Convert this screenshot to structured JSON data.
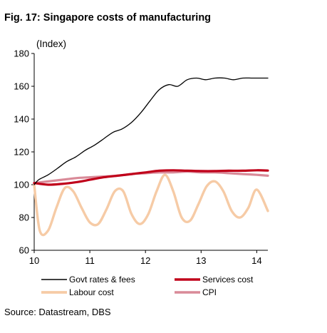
{
  "figure": {
    "title": "Fig. 17:  Singapore costs of manufacturing",
    "source": "Source: Datastream, DBS"
  },
  "chart_data": {
    "type": "line",
    "ylabel": "(Index)",
    "ylim": [
      60,
      180
    ],
    "yticks": [
      60,
      80,
      100,
      120,
      140,
      160,
      180
    ],
    "xlim": [
      10,
      14.2
    ],
    "xticks": [
      10,
      11,
      12,
      13,
      14
    ],
    "grid": false,
    "legend_position": "bottom",
    "series": [
      {
        "name": "Govt rates & fees",
        "color": "#000000",
        "width": 1.3,
        "x": [
          10.0,
          10.08,
          10.25,
          10.42,
          10.58,
          10.75,
          10.92,
          11.08,
          11.25,
          11.42,
          11.58,
          11.75,
          11.92,
          12.08,
          12.25,
          12.42,
          12.58,
          12.75,
          12.92,
          13.08,
          13.25,
          13.42,
          13.58,
          13.75,
          13.92,
          14.08,
          14.2
        ],
        "y": [
          100,
          103,
          106,
          110,
          114,
          117,
          121,
          124,
          128,
          132,
          134,
          138,
          144,
          151,
          158,
          161,
          160,
          164,
          165,
          164,
          165,
          165,
          164,
          165,
          165,
          165,
          165
        ]
      },
      {
        "name": "Services cost",
        "color": "#c0001a",
        "width": 3.2,
        "x": [
          10.0,
          10.25,
          10.5,
          10.75,
          11.0,
          11.25,
          11.5,
          11.75,
          12.0,
          12.25,
          12.5,
          12.75,
          13.0,
          13.25,
          13.5,
          13.75,
          14.0,
          14.2
        ],
        "y": [
          101,
          100,
          100.5,
          101.5,
          103,
          104.5,
          105.5,
          106.5,
          107.5,
          108.5,
          108.8,
          108.5,
          108.3,
          108.3,
          108.5,
          108.5,
          108.8,
          108.6
        ]
      },
      {
        "name": "Labour cost",
        "color": "#f6cba6",
        "width": 3.4,
        "x": [
          10.0,
          10.1,
          10.25,
          10.4,
          10.55,
          10.7,
          10.85,
          11.0,
          11.15,
          11.3,
          11.45,
          11.6,
          11.75,
          11.9,
          12.05,
          12.2,
          12.35,
          12.5,
          12.65,
          12.8,
          12.95,
          13.1,
          13.25,
          13.4,
          13.55,
          13.7,
          13.85,
          14.0,
          14.2
        ],
        "y": [
          100,
          72,
          72,
          86,
          98,
          96,
          86,
          77,
          76,
          85,
          96,
          96,
          82,
          76,
          82,
          96,
          106,
          96,
          80,
          78,
          88,
          99,
          102,
          96,
          84,
          80,
          86,
          97,
          84
        ]
      },
      {
        "name": "CPI",
        "color": "#d98a98",
        "width": 3.2,
        "x": [
          10.0,
          10.25,
          10.5,
          10.75,
          11.0,
          11.25,
          11.5,
          11.75,
          12.0,
          12.25,
          12.5,
          12.75,
          13.0,
          13.25,
          13.5,
          13.75,
          14.0,
          14.2
        ],
        "y": [
          101,
          102,
          103,
          104,
          104.5,
          105,
          105.5,
          106.5,
          107,
          107.5,
          107.5,
          108,
          107.5,
          107.5,
          107,
          106.5,
          106,
          105.5
        ]
      }
    ]
  }
}
